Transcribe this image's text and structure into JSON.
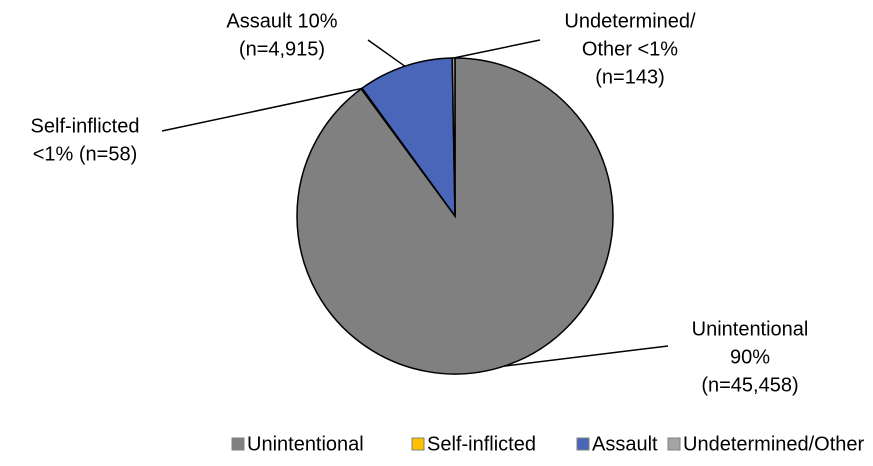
{
  "chart_data": {
    "type": "pie",
    "categories": [
      "Unintentional",
      "Self-inflicted",
      "Assault",
      "Undetermined/Other"
    ],
    "values": [
      45458,
      58,
      4915,
      143
    ],
    "value_labels": [
      [
        "Unintentional",
        "90%",
        "(n=45,458)"
      ],
      [
        "Self-inflicted",
        "<1% (n=58)"
      ],
      [
        "Assault 10%",
        "(n=4,915)"
      ],
      [
        "Undetermined/",
        "Other <1%",
        "(n=143)"
      ]
    ],
    "colors": [
      "#808080",
      "#ffc000",
      "#4a66b8",
      "#a5a5a5"
    ],
    "legend": "bottom"
  }
}
